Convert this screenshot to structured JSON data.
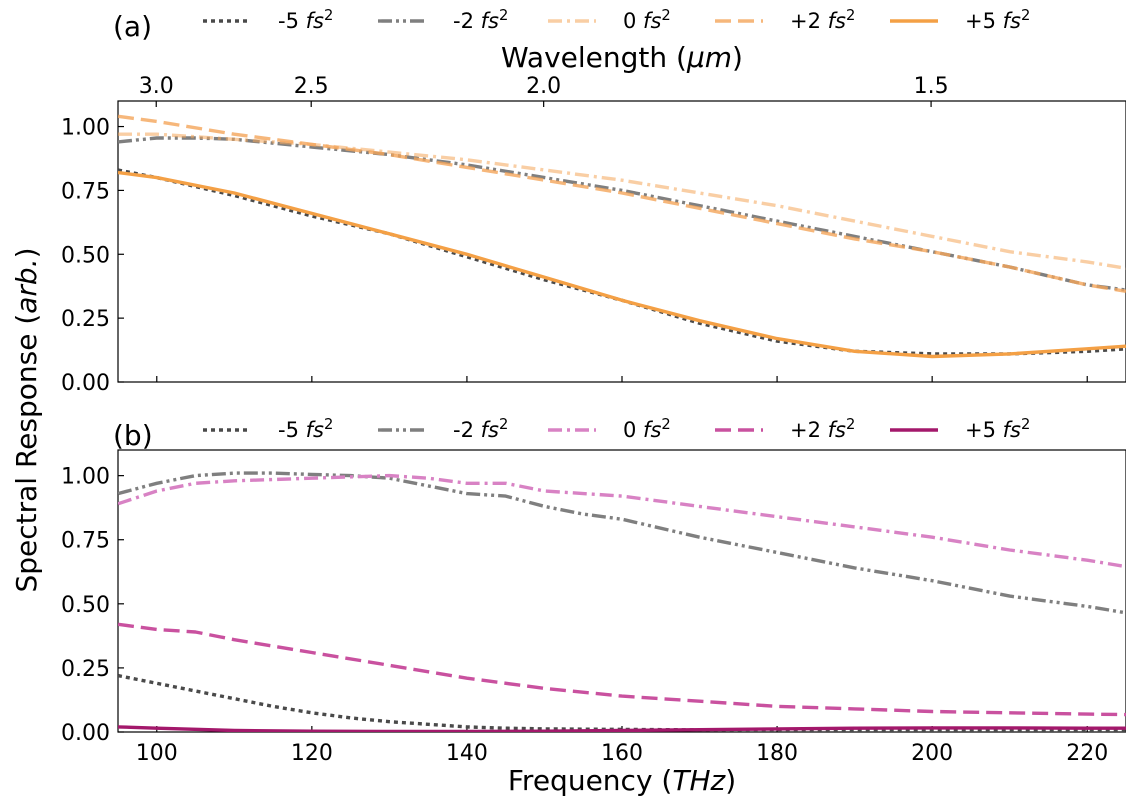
{
  "chart_data": [
    {
      "panel_label": "(a)",
      "type": "line",
      "xlim": [
        95,
        225
      ],
      "ylim": [
        0,
        1.1
      ],
      "yticks": [
        0.0,
        0.25,
        0.5,
        0.75,
        1.0
      ],
      "ytick_labels": [
        "0.00",
        "0.25",
        "0.50",
        "0.75",
        "1.00"
      ],
      "top_axis": {
        "label": "Wavelength (μm)",
        "ticks_um": [
          3.0,
          2.5,
          2.0,
          1.5
        ],
        "tick_labels": [
          "3.0",
          "2.5",
          "2.0",
          "1.5"
        ]
      },
      "series": [
        {
          "name": "-5 fs²",
          "label_prefix": "-5",
          "color": "#4a4a4a",
          "dash": "dotted",
          "opacity": 1,
          "x": [
            95,
            100,
            110,
            120,
            130,
            140,
            150,
            160,
            170,
            180,
            190,
            200,
            210,
            220,
            225
          ],
          "y": [
            0.83,
            0.8,
            0.73,
            0.65,
            0.58,
            0.49,
            0.4,
            0.32,
            0.23,
            0.16,
            0.12,
            0.11,
            0.11,
            0.12,
            0.13
          ]
        },
        {
          "name": "-2 fs²",
          "label_prefix": "-2",
          "color": "#7f7f7f",
          "dash": "dashdotdot",
          "opacity": 1,
          "x": [
            95,
            100,
            105,
            110,
            120,
            130,
            140,
            150,
            160,
            170,
            180,
            190,
            200,
            210,
            220,
            225
          ],
          "y": [
            0.94,
            0.955,
            0.955,
            0.95,
            0.92,
            0.89,
            0.85,
            0.8,
            0.75,
            0.69,
            0.63,
            0.57,
            0.51,
            0.45,
            0.38,
            0.36
          ]
        },
        {
          "name": "0 fs²",
          "label_prefix": "0",
          "color": "#f4a55a",
          "dash": "dashdot",
          "opacity": 0.55,
          "x": [
            95,
            100,
            110,
            120,
            130,
            140,
            150,
            160,
            170,
            180,
            190,
            200,
            210,
            220,
            225
          ],
          "y": [
            0.97,
            0.97,
            0.95,
            0.93,
            0.9,
            0.87,
            0.83,
            0.79,
            0.74,
            0.69,
            0.63,
            0.57,
            0.51,
            0.47,
            0.445
          ]
        },
        {
          "name": "+2 fs²",
          "label_prefix": "+2",
          "color": "#f4a55a",
          "dash": "dashed",
          "opacity": 0.8,
          "x": [
            95,
            100,
            110,
            120,
            130,
            140,
            150,
            160,
            170,
            180,
            190,
            200,
            210,
            220,
            225
          ],
          "y": [
            1.04,
            1.02,
            0.97,
            0.93,
            0.89,
            0.84,
            0.79,
            0.74,
            0.68,
            0.62,
            0.56,
            0.51,
            0.45,
            0.38,
            0.355
          ]
        },
        {
          "name": "+5 fs²",
          "label_prefix": "+5",
          "color": "#f4a045",
          "dash": "solid",
          "opacity": 1,
          "x": [
            95,
            100,
            110,
            120,
            130,
            140,
            150,
            160,
            170,
            180,
            190,
            200,
            210,
            220,
            225
          ],
          "y": [
            0.82,
            0.8,
            0.74,
            0.66,
            0.58,
            0.5,
            0.41,
            0.32,
            0.24,
            0.17,
            0.12,
            0.1,
            0.11,
            0.13,
            0.14
          ]
        }
      ]
    },
    {
      "panel_label": "(b)",
      "type": "line",
      "xlim": [
        95,
        225
      ],
      "ylim": [
        0,
        1.1
      ],
      "yticks": [
        0.0,
        0.25,
        0.5,
        0.75,
        1.0
      ],
      "ytick_labels": [
        "0.00",
        "0.25",
        "0.50",
        "0.75",
        "1.00"
      ],
      "xlabel": "Frequency (THz)",
      "xticks": [
        100,
        120,
        140,
        160,
        180,
        200,
        220
      ],
      "xtick_labels": [
        "100",
        "120",
        "140",
        "160",
        "180",
        "200",
        "220"
      ],
      "series": [
        {
          "name": "-5 fs²",
          "label_prefix": "-5",
          "color": "#4a4a4a",
          "dash": "dotted",
          "opacity": 1,
          "x": [
            95,
            100,
            105,
            110,
            115,
            120,
            125,
            130,
            135,
            140,
            145,
            150,
            160,
            170,
            180,
            200,
            225
          ],
          "y": [
            0.22,
            0.19,
            0.16,
            0.13,
            0.1,
            0.075,
            0.055,
            0.04,
            0.03,
            0.02,
            0.015,
            0.012,
            0.01,
            0.008,
            0.006,
            0.005,
            0.005
          ]
        },
        {
          "name": "-2 fs²",
          "label_prefix": "-2",
          "color": "#7f7f7f",
          "dash": "dashdotdot",
          "opacity": 1,
          "x": [
            95,
            100,
            105,
            110,
            115,
            120,
            125,
            130,
            135,
            140,
            145,
            150,
            155,
            160,
            170,
            180,
            190,
            200,
            210,
            220,
            225
          ],
          "y": [
            0.93,
            0.97,
            1.0,
            1.01,
            1.01,
            1.005,
            1.0,
            0.99,
            0.96,
            0.93,
            0.92,
            0.88,
            0.85,
            0.83,
            0.76,
            0.7,
            0.64,
            0.59,
            0.53,
            0.49,
            0.465
          ]
        },
        {
          "name": "0 fs²",
          "label_prefix": "0",
          "color": "#d882c4",
          "dash": "dashdot",
          "opacity": 1,
          "x": [
            95,
            100,
            105,
            110,
            120,
            130,
            135,
            140,
            145,
            150,
            160,
            170,
            180,
            190,
            200,
            210,
            220,
            225
          ],
          "y": [
            0.89,
            0.94,
            0.97,
            0.98,
            0.99,
            1.0,
            0.99,
            0.97,
            0.97,
            0.94,
            0.92,
            0.88,
            0.84,
            0.8,
            0.76,
            0.71,
            0.67,
            0.645
          ]
        },
        {
          "name": "+2 fs²",
          "label_prefix": "+2",
          "color": "#c9519f",
          "dash": "dashed",
          "opacity": 1,
          "x": [
            95,
            100,
            105,
            110,
            120,
            130,
            140,
            150,
            160,
            170,
            180,
            190,
            200,
            210,
            220,
            225
          ],
          "y": [
            0.42,
            0.4,
            0.39,
            0.36,
            0.31,
            0.26,
            0.21,
            0.17,
            0.14,
            0.12,
            0.1,
            0.09,
            0.08,
            0.075,
            0.07,
            0.068
          ]
        },
        {
          "name": "+5 fs²",
          "label_prefix": "+5",
          "color": "#a3186b",
          "dash": "solid",
          "opacity": 1,
          "x": [
            95,
            100,
            110,
            120,
            130,
            140,
            150,
            160,
            170,
            180,
            190,
            200,
            210,
            220,
            225
          ],
          "y": [
            0.02,
            0.015,
            0.006,
            0.003,
            0.002,
            0.002,
            0.003,
            0.006,
            0.009,
            0.012,
            0.015,
            0.016,
            0.016,
            0.015,
            0.015
          ]
        }
      ]
    }
  ],
  "shared": {
    "ylabel": "Spectral Response (arb.)",
    "top_xlabel": "Wavelength (μm)",
    "legend_unit_symbol": "fs",
    "legend_unit_power": "2"
  }
}
